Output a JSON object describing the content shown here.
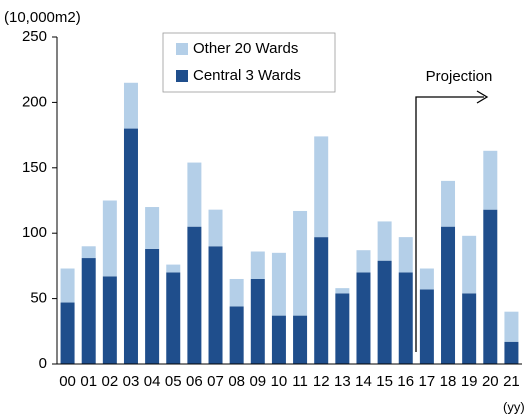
{
  "chart_data": {
    "type": "stacked_bar",
    "y_axis_label": "(10,000m2)",
    "x_axis_label": "(yy)",
    "annotation": "Projection",
    "categories": [
      "00",
      "01",
      "02",
      "03",
      "04",
      "05",
      "06",
      "07",
      "08",
      "09",
      "10",
      "11",
      "12",
      "13",
      "14",
      "15",
      "16",
      "17",
      "18",
      "19",
      "20",
      "21"
    ],
    "series": [
      {
        "name": "Other 20 Wards",
        "color": "#b4cfe8",
        "values": [
          26,
          9,
          58,
          35,
          32,
          6,
          49,
          28,
          21,
          21,
          48,
          80,
          77,
          4,
          17,
          30,
          27,
          16,
          35,
          44,
          45,
          23
        ]
      },
      {
        "name": "Central 3 Wards",
        "color": "#1f4e8c",
        "values": [
          47,
          81,
          67,
          180,
          88,
          70,
          105,
          90,
          44,
          65,
          37,
          37,
          97,
          54,
          70,
          79,
          70,
          57,
          105,
          54,
          118,
          17
        ]
      }
    ],
    "ylim": [
      0,
      250
    ],
    "yticks": [
      0,
      50,
      100,
      150,
      200,
      250
    ],
    "grid": false,
    "legend": "top"
  }
}
